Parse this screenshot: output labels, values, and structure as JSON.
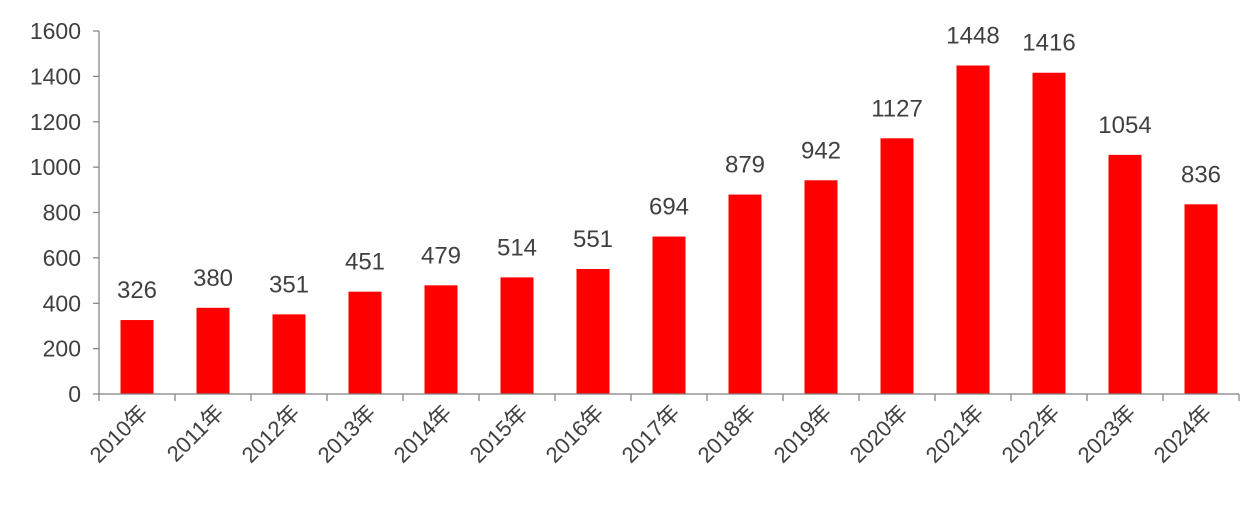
{
  "chart_data": {
    "type": "bar",
    "categories": [
      "2010年",
      "2011年",
      "2012年",
      "2013年",
      "2014年",
      "2015年",
      "2016年",
      "2017年",
      "2018年",
      "2019年",
      "2020年",
      "2021年",
      "2022年",
      "2023年",
      "2024年"
    ],
    "values": [
      326,
      380,
      351,
      451,
      479,
      514,
      551,
      694,
      879,
      942,
      1127,
      1448,
      1416,
      1054,
      836
    ],
    "yticks": [
      "0",
      "200",
      "400",
      "600",
      "800",
      "1000",
      "1200",
      "1400",
      "1600"
    ],
    "ylim": [
      0,
      1600
    ],
    "grid": false,
    "legend": "none",
    "colors": {
      "bar": "#ff0000",
      "axis": "#7f7f7f",
      "text": "#404040"
    }
  }
}
